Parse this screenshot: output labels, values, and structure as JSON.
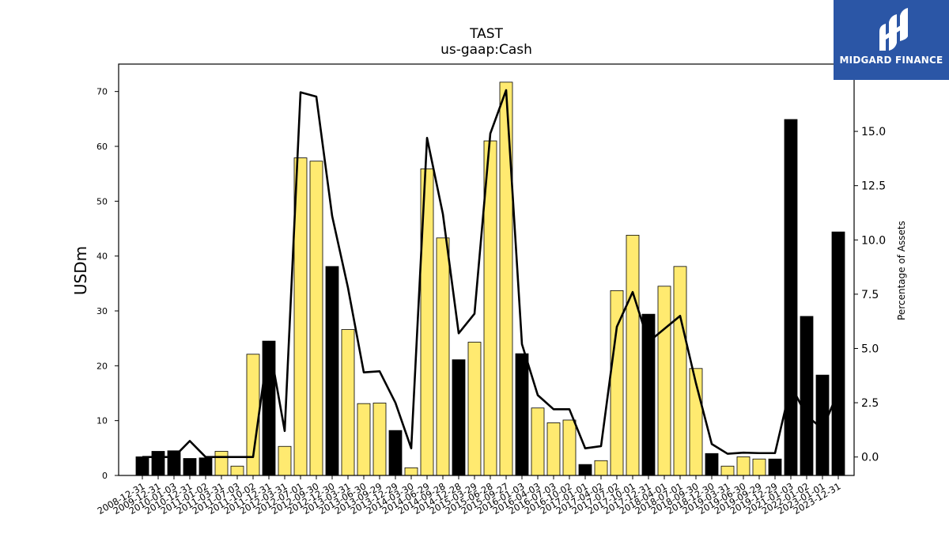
{
  "logo": {
    "text": "MIDGARD FINANCE"
  },
  "chart_data": {
    "type": "bar",
    "title": "TAST",
    "subtitle": "us-gaap:Cash",
    "ylabel": "USDm",
    "y2label": "Percentage of Assets",
    "ylim": [
      0,
      75
    ],
    "y2lim": [
      -0.85,
      18.1
    ],
    "yticks": [
      0,
      10,
      20,
      30,
      40,
      50,
      60,
      70
    ],
    "y2ticks": [
      0.0,
      2.5,
      5.0,
      7.5,
      10.0,
      12.5,
      15.0
    ],
    "categories": [
      "2008-12-31",
      "2009-12-31",
      "2010-01-03",
      "2010-12-31",
      "2011-01-02",
      "2011-03-31",
      "2011-07-03",
      "2011-10-02",
      "2011-12-31",
      "2012-03-31",
      "2012-07-01",
      "2012-09-30",
      "2012-12-30",
      "2013-03-31",
      "2013-06-30",
      "2013-09-29",
      "2013-12-29",
      "2014-03-30",
      "2014-06-29",
      "2014-09-28",
      "2014-12-28",
      "2015-03-29",
      "2015-06-28",
      "2015-09-27",
      "2016-01-03",
      "2016-04-03",
      "2016-07-03",
      "2016-10-02",
      "2017-01-01",
      "2017-04-02",
      "2017-07-02",
      "2017-10-01",
      "2017-12-31",
      "2018-04-01",
      "2018-07-01",
      "2018-09-30",
      "2018-12-30",
      "2019-03-31",
      "2019-06-30",
      "2019-09-29",
      "2019-12-29",
      "2021-01-03",
      "2022-01-02",
      "2023-01-01",
      "2023-12-31"
    ],
    "series": [
      {
        "type": "bar",
        "values": [
          3.4,
          4.4,
          4.5,
          3.1,
          3.2,
          4.4,
          1.7,
          22.1,
          24.5,
          5.3,
          57.9,
          57.3,
          38.1,
          26.6,
          13.1,
          13.2,
          8.2,
          1.4,
          55.9,
          43.3,
          21.1,
          24.3,
          61.0,
          71.7,
          22.2,
          12.3,
          9.6,
          10.1,
          2.0,
          2.7,
          33.7,
          43.8,
          29.4,
          34.5,
          38.1,
          19.5,
          4.0,
          1.7,
          3.4,
          3.0,
          3.0,
          64.9,
          29.0,
          18.3,
          44.4
        ],
        "annual": [
          true,
          true,
          true,
          true,
          true,
          false,
          false,
          false,
          true,
          false,
          false,
          false,
          true,
          false,
          false,
          false,
          true,
          false,
          false,
          false,
          true,
          false,
          false,
          false,
          true,
          false,
          false,
          false,
          true,
          false,
          false,
          false,
          true,
          false,
          false,
          false,
          true,
          false,
          false,
          false,
          true,
          true,
          true,
          true,
          true
        ]
      },
      {
        "type": "line",
        "axis": "right",
        "values": [
          0.0,
          0.0,
          0.0,
          0.74,
          0.0,
          0.0,
          0.0,
          0.0,
          5.3,
          1.2,
          16.8,
          16.6,
          11.1,
          7.8,
          3.9,
          3.95,
          2.5,
          0.4,
          14.7,
          11.2,
          5.7,
          6.6,
          14.9,
          16.9,
          5.2,
          2.85,
          2.2,
          2.2,
          0.4,
          0.5,
          6.0,
          7.6,
          5.3,
          5.9,
          6.5,
          3.4,
          0.6,
          0.15,
          0.2,
          0.18,
          0.18,
          3.3,
          1.9,
          1.3,
          3.0
        ]
      }
    ],
    "colors": {
      "annual_bar": "#000000",
      "quarterly_bar": "#ffea70",
      "line": "#000000"
    },
    "grid": false,
    "legend": "none"
  }
}
